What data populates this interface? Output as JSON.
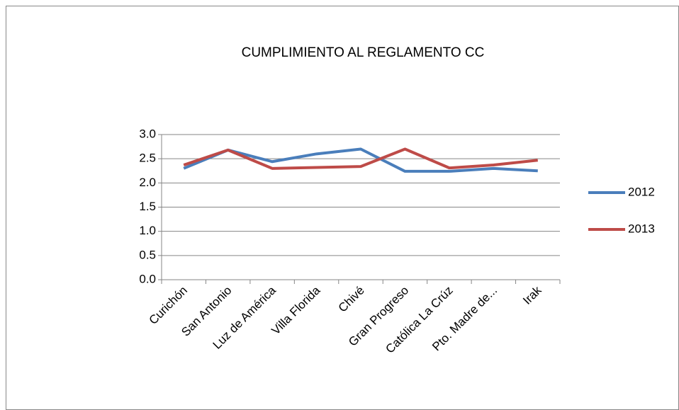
{
  "chart_data": {
    "type": "line",
    "title": "CUMPLIMIENTO AL REGLAMENTO CC",
    "categories": [
      "Curichón",
      "San Antonio",
      "Luz de América",
      "Villa Florida",
      "Chivé",
      "Gran Progreso",
      "Católica La Crúz",
      "Pto. Madre de...",
      "Irak"
    ],
    "series": [
      {
        "name": "2012",
        "color": "#4a7ebb",
        "values": [
          2.3,
          2.68,
          2.44,
          2.6,
          2.7,
          2.24,
          2.24,
          2.3,
          2.25
        ]
      },
      {
        "name": "2013",
        "color": "#be4b48",
        "values": [
          2.37,
          2.68,
          2.3,
          2.32,
          2.34,
          2.7,
          2.31,
          2.37,
          2.47
        ]
      }
    ],
    "ylim": [
      0,
      3
    ],
    "yticks": [
      {
        "value": 0,
        "label": "0.0"
      },
      {
        "value": 0.5,
        "label": "0.5"
      },
      {
        "value": 1,
        "label": "1.0"
      },
      {
        "value": 1.5,
        "label": "1.5"
      },
      {
        "value": 2,
        "label": "2.0"
      },
      {
        "value": 2.5,
        "label": "2.5"
      },
      {
        "value": 3,
        "label": "3.0"
      }
    ],
    "grid": true,
    "legend": "right"
  }
}
